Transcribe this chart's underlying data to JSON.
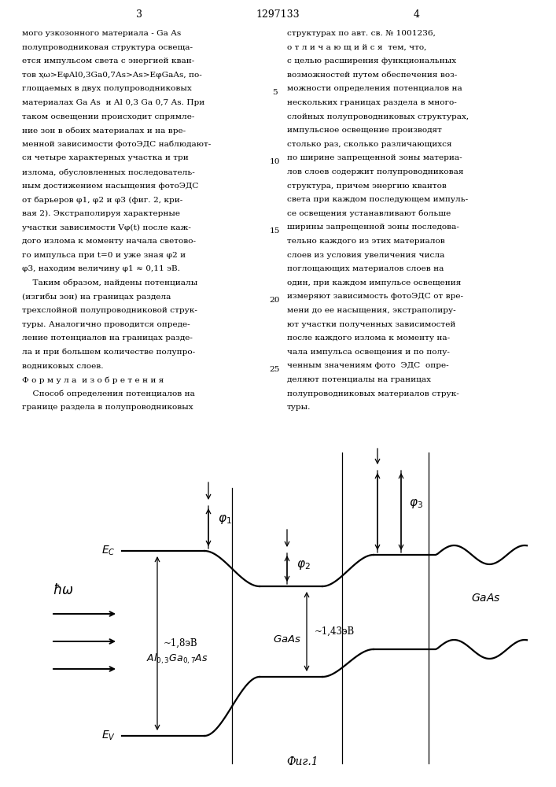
{
  "page_number_left": "3",
  "patent_number": "1297133",
  "page_number_right": "4",
  "text_left": [
    "мого узкозонного материала - Ga As",
    "полупроводниковая структура освеща-",
    "ется импульсом света с энергией кван-",
    "тов ҳω>EφAl0,3Ga0,7As>As>EφGaAs, по-",
    "глощаемых в двух полупроводниковых",
    "материалах Ga As  и Al 0,3 Ga 0,7 As. При",
    "таком освещении происходит спрямле-",
    "ние зон в обоих материалах и на вре-",
    "менной зависимости фотоЭДС наблюдают-",
    "ся четыре характерных участка и три",
    "излома, обусловленных последователь-",
    "ным достижением насыщения фотоЭДС",
    "от барьеров φ1, φ2 и φ3 (фиг. 2, кри-",
    "вая 2). Экстраполируя характерные",
    "участки зависимости Vφ(t) после каж-",
    "дого излома к моменту начала светово-",
    "го импульса при t=0 и уже зная φ2 и",
    "φ3, находим величину φ1 ≈ 0,11 эВ.",
    "    Таким образом, найдены потенциалы",
    "(изгибы зон) на границах раздела",
    "трехслойной полупроводниковой струк-",
    "туры. Аналогично проводится опреде-",
    "ление потенциалов на границах разде-",
    "ла и при большем количестве полупро-",
    "водниковых слоев.",
    "Ф о р м у л а  и з о б р е т е н и я",
    "    Способ определения потенциалов на",
    "границе раздела в полупроводниковых"
  ],
  "text_right": [
    "структурах по авт. св. № 1001236,",
    "о т л и ч а ю щ и й с я  тем, что,",
    "с целью расширения функциональных",
    "возможностей путем обеспечения воз-",
    "можности определения потенциалов на",
    "нескольких границах раздела в много-",
    "слойных полупроводниковых структурах,",
    "импульсное освещение производят",
    "столько раз, сколько различающихся",
    "по ширине запрещенной зоны материа-",
    "лов слоев содержит полупроводниковая",
    "структура, причем энергию квантов",
    "света при каждом последующем импуль-",
    "се освещения устанавливают больше",
    "ширины запрещенной зоны последова-",
    "тельно каждого из этих материалов",
    "слоев из условия увеличения числа",
    "поглощающих материалов слоев на",
    "один, при каждом импульсе освещения",
    "измеряют зависимость фотоЭДС от вре-",
    "мени до ее насыщения, экстраполиру-",
    "ют участки полученных зависимостей",
    "после каждого излома к моменту на-",
    "чала импульса освещения и по полу-",
    "ченным значениям фото  ЭДС  опре-",
    "деляют потенциалы на границах",
    "полупроводниковых материалов струк-",
    "туры."
  ],
  "fig_caption": "Фиг.1",
  "background_color": "#ffffff"
}
